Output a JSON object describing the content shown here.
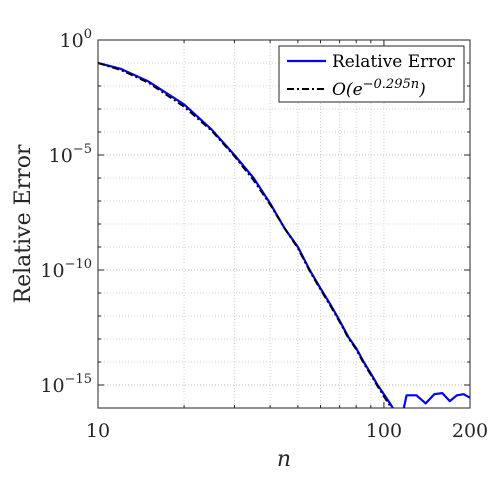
{
  "chart_data": {
    "type": "line",
    "title": "",
    "xlabel": "n",
    "ylabel": "Relative Error",
    "x_scale": "log",
    "y_scale": "log",
    "xlim": [
      10,
      200
    ],
    "ylim_exponents": [
      -16,
      0
    ],
    "x_ticks": [
      {
        "value": 10,
        "label": "10"
      },
      {
        "value": 100,
        "label": "100"
      },
      {
        "value": 200,
        "label": "200"
      }
    ],
    "y_ticks": [
      {
        "exp": 0,
        "base": "10",
        "sup": "0"
      },
      {
        "exp": -5,
        "base": "10",
        "sup": "−5"
      },
      {
        "exp": -10,
        "base": "10",
        "sup": "−10"
      },
      {
        "exp": -15,
        "base": "10",
        "sup": "−15"
      }
    ],
    "grid": true,
    "legend_position": "top-right",
    "series": [
      {
        "name": "Relative Error",
        "color": "#0000ff",
        "style": "solid",
        "x": [
          10,
          12,
          15,
          20,
          25,
          30,
          35,
          40,
          45,
          50,
          55,
          60,
          65,
          70,
          75,
          80,
          85,
          90,
          95,
          100,
          105,
          110,
          115,
          120,
          130,
          140,
          150,
          160,
          170,
          180,
          190,
          200
        ],
        "y_exp": [
          -1.0,
          -1.25,
          -1.8,
          -2.8,
          -3.9,
          -5.0,
          -6.0,
          -7.1,
          -8.2,
          -9.0,
          -10.0,
          -10.8,
          -11.5,
          -12.2,
          -12.9,
          -13.4,
          -14.0,
          -14.5,
          -15.0,
          -15.4,
          -15.8,
          -16.2,
          -16.5,
          -15.45,
          -15.45,
          -15.8,
          -15.4,
          -15.35,
          -15.7,
          -15.45,
          -15.4,
          -15.55
        ]
      },
      {
        "name": "O(e^{-0.295n})",
        "legend_main": "O(e",
        "legend_sup": "−0.295n",
        "legend_tail": ")",
        "color": "#000000",
        "style": "dashdot",
        "x": [
          10,
          12,
          15,
          20,
          25,
          30,
          35,
          40,
          45,
          50,
          55,
          60,
          65,
          70,
          75,
          80,
          85,
          90,
          95,
          100,
          105,
          110,
          115,
          120,
          125,
          130
        ],
        "y_exp": [
          -1.0,
          -1.3,
          -1.85,
          -2.9,
          -3.95,
          -5.05,
          -6.1,
          -7.15,
          -8.2,
          -9.05,
          -10.05,
          -10.85,
          -11.55,
          -12.25,
          -12.95,
          -13.45,
          -14.05,
          -14.55,
          -15.05,
          -15.5,
          -15.9,
          -16.3,
          -16.65,
          -16.9,
          -17.1,
          -17.3
        ]
      }
    ]
  }
}
